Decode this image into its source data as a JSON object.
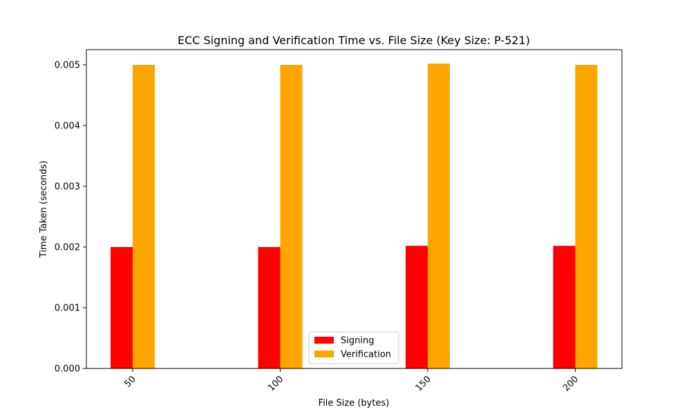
{
  "chart_data": {
    "type": "bar",
    "title": "ECC Signing and Verification Time vs. File Size (Key Size: P-521)",
    "xlabel": "File Size (bytes)",
    "ylabel": "Time Taken (seconds)",
    "categories": [
      "50",
      "100",
      "150",
      "200"
    ],
    "series": [
      {
        "name": "Signing",
        "color": "#ff0000",
        "values": [
          0.002,
          0.002,
          0.00202,
          0.00202
        ]
      },
      {
        "name": "Verification",
        "color": "#ffa500",
        "values": [
          0.005,
          0.005,
          0.00502,
          0.005
        ]
      }
    ],
    "ylim": [
      0,
      0.00525
    ],
    "yticks": [
      "0.000",
      "0.001",
      "0.002",
      "0.003",
      "0.004",
      "0.005"
    ],
    "grid": false,
    "legend_position": "bottom-center"
  }
}
